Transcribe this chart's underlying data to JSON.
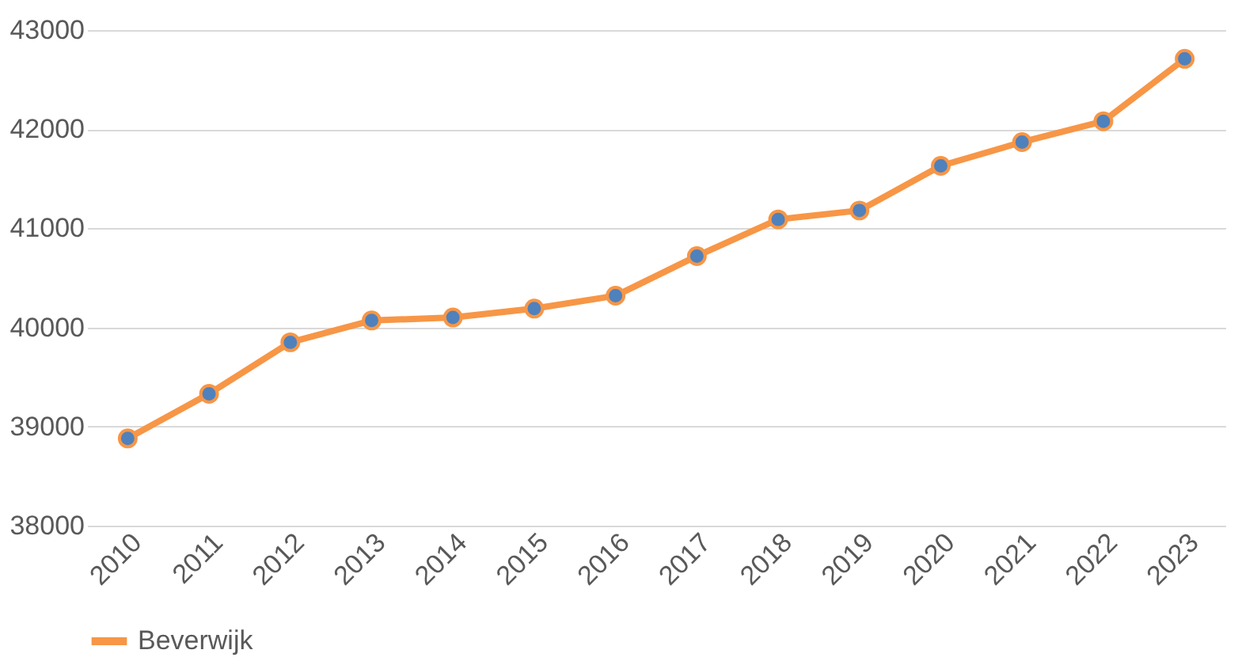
{
  "chart_data": {
    "type": "line",
    "categories": [
      "2010",
      "2011",
      "2012",
      "2013",
      "2014",
      "2015",
      "2016",
      "2017",
      "2018",
      "2019",
      "2020",
      "2021",
      "2022",
      "2023"
    ],
    "series": [
      {
        "name": "Beverwijk",
        "color": "#f79646",
        "colors": [
          "#4f81bd",
          "#4f81bd",
          "#4f81bd",
          "#4f81bd",
          "#4f81bd",
          "#4f81bd",
          "#4f81bd",
          "#4f81bd",
          "#4f81bd",
          "#4f81bd",
          "#4f81bd",
          "#4f81bd",
          "#4f81bd",
          "#4f81bd"
        ],
        "values": [
          38880,
          39330,
          39850,
          40070,
          40100,
          40190,
          40320,
          40720,
          41090,
          41180,
          41630,
          41870,
          42080,
          42710
        ]
      }
    ],
    "ylim": [
      38000,
      43000
    ],
    "yticks": [
      38000,
      39000,
      40000,
      41000,
      42000,
      43000
    ],
    "grid": "y",
    "legend": "bottom",
    "marker": "circle",
    "line_style": "solid"
  }
}
